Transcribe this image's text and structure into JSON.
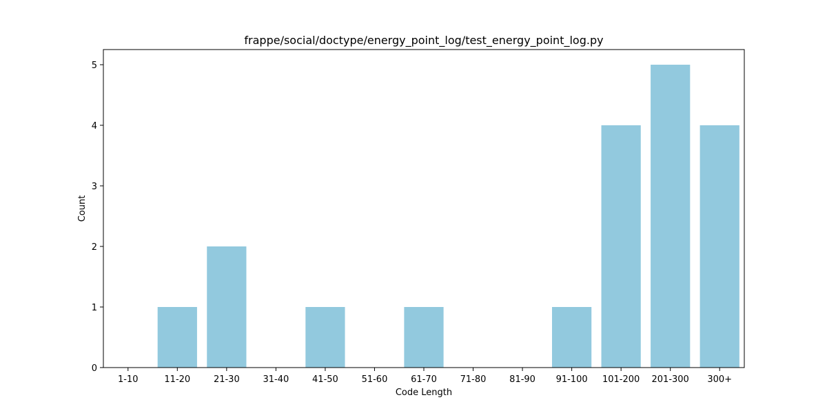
{
  "chart_data": {
    "type": "bar",
    "title": "frappe/social/doctype/energy_point_log/test_energy_point_log.py",
    "xlabel": "Code Length",
    "ylabel": "Count",
    "categories": [
      "1-10",
      "11-20",
      "21-30",
      "31-40",
      "41-50",
      "51-60",
      "61-70",
      "71-80",
      "81-90",
      "91-100",
      "101-200",
      "201-300",
      "300+"
    ],
    "values": [
      0,
      1,
      2,
      0,
      1,
      0,
      1,
      0,
      0,
      1,
      4,
      5,
      4
    ],
    "ylim": [
      0,
      5.25
    ],
    "yticks": [
      0,
      1,
      2,
      3,
      4,
      5
    ],
    "bar_color": "#92c9de",
    "grid": false,
    "legend": "none"
  }
}
